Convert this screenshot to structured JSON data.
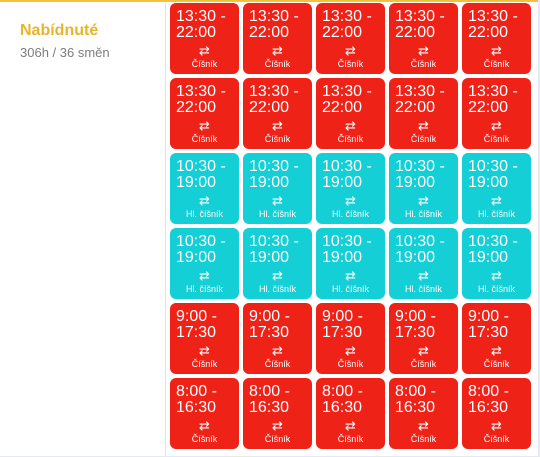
{
  "section": {
    "title": "Nabídnuté",
    "stats": "306h / 36 směn"
  },
  "icons": {
    "swap": "⇄",
    "swap_name": "swap-arrows-icon"
  },
  "colors": {
    "red": "#ef2218",
    "cyan": "#14cfd6",
    "accent": "#e8b52a"
  },
  "rows": [
    {
      "time": "13:30 -\n22:00",
      "role": "Číšník",
      "color": "red"
    },
    {
      "time": "13:30 -\n22:00",
      "role": "Číšník",
      "color": "red"
    },
    {
      "time": "10:30 -\n19:00",
      "role": "Hl. číšník",
      "color": "cyan"
    },
    {
      "time": "10:30 -\n19:00",
      "role": "Hl. číšník",
      "color": "cyan"
    },
    {
      "time": "9:00 -\n17:30",
      "role": "Číšník",
      "color": "red"
    },
    {
      "time": "8:00 -\n16:30",
      "role": "Číšník",
      "color": "red"
    }
  ],
  "columns_per_row": 5
}
